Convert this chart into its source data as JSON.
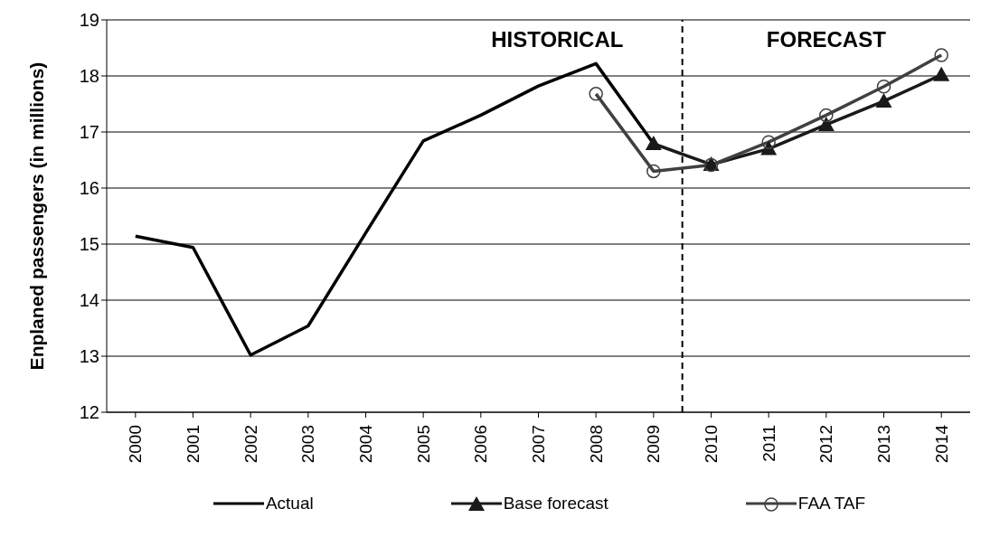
{
  "chart_data": {
    "type": "line",
    "ylabel": "Enplaned passengers (in millions)",
    "x": [
      2000,
      2001,
      2002,
      2003,
      2004,
      2005,
      2006,
      2007,
      2008,
      2009,
      2010,
      2011,
      2012,
      2013,
      2014
    ],
    "xlim": [
      1999.5,
      2014.5
    ],
    "xticks": [
      2000,
      2001,
      2002,
      2003,
      2004,
      2005,
      2006,
      2007,
      2008,
      2009,
      2010,
      2011,
      2012,
      2013,
      2014
    ],
    "ylim": [
      12,
      19
    ],
    "yticks": [
      12,
      13,
      14,
      15,
      16,
      17,
      18,
      19
    ],
    "grid": "y",
    "legend": "bottom",
    "series": [
      {
        "name": "Actual",
        "color": "#000000",
        "marker": "none",
        "values": [
          15.14,
          14.94,
          13.02,
          13.54,
          15.2,
          16.84,
          17.3,
          17.82,
          18.22,
          16.79,
          null,
          null,
          null,
          null,
          null
        ]
      },
      {
        "name": "Base forecast",
        "color": "#1a1a1a",
        "marker": "triangle",
        "values": [
          null,
          null,
          null,
          null,
          null,
          null,
          null,
          null,
          null,
          16.79,
          16.42,
          16.7,
          17.13,
          17.55,
          18.02
        ]
      },
      {
        "name": "FAA TAF",
        "color": "#404040",
        "marker": "circle",
        "values": [
          null,
          null,
          null,
          null,
          null,
          null,
          null,
          null,
          17.68,
          16.3,
          16.41,
          16.82,
          17.3,
          17.81,
          18.37
        ]
      }
    ],
    "ref_lines": [
      {
        "axis": "x",
        "value": 2009.5,
        "line_style": "dashed",
        "color": "#000000"
      }
    ],
    "annotations": [
      "HISTORICAL",
      "FORECAST"
    ]
  }
}
